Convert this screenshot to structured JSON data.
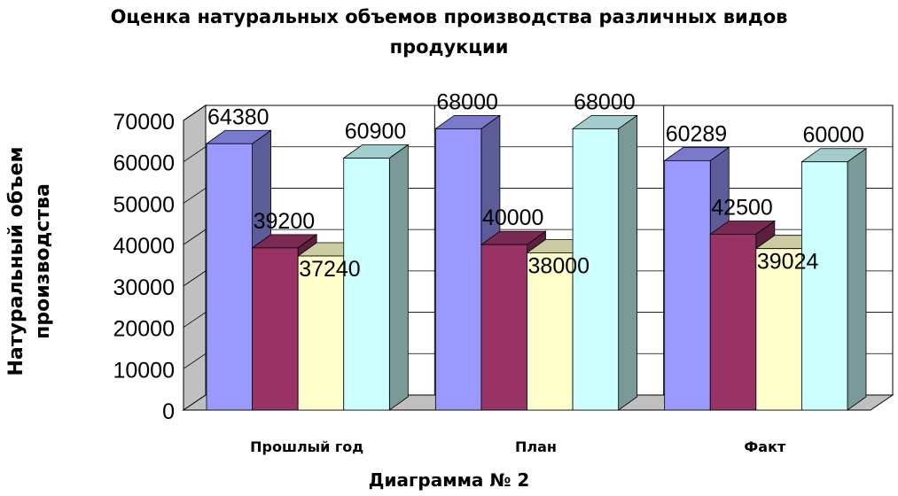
{
  "chart_data": {
    "type": "bar",
    "title_lines": [
      "Оценка натуральных объемов производства различных видов",
      "продукции"
    ],
    "ylabel_lines": [
      "Натуральный объем",
      "производства"
    ],
    "caption": "Диаграмма № 2",
    "categories": [
      "Прошлый год",
      "План",
      "Факт"
    ],
    "series": [
      {
        "values": [
          64380,
          68000,
          60289
        ],
        "color": "#9999FF"
      },
      {
        "values": [
          39200,
          40000,
          42500
        ],
        "color": "#993366"
      },
      {
        "values": [
          37240,
          38000,
          39024
        ],
        "color": "#FFFFCC"
      },
      {
        "values": [
          60900,
          68000,
          60000
        ],
        "color": "#CCFFFF"
      }
    ],
    "ylim": [
      0,
      70000
    ],
    "yticks": [
      "0",
      "10000",
      "20000",
      "30000",
      "40000",
      "50000",
      "60000",
      "70000"
    ],
    "grid": true,
    "style": "3d-clustered-columns"
  }
}
